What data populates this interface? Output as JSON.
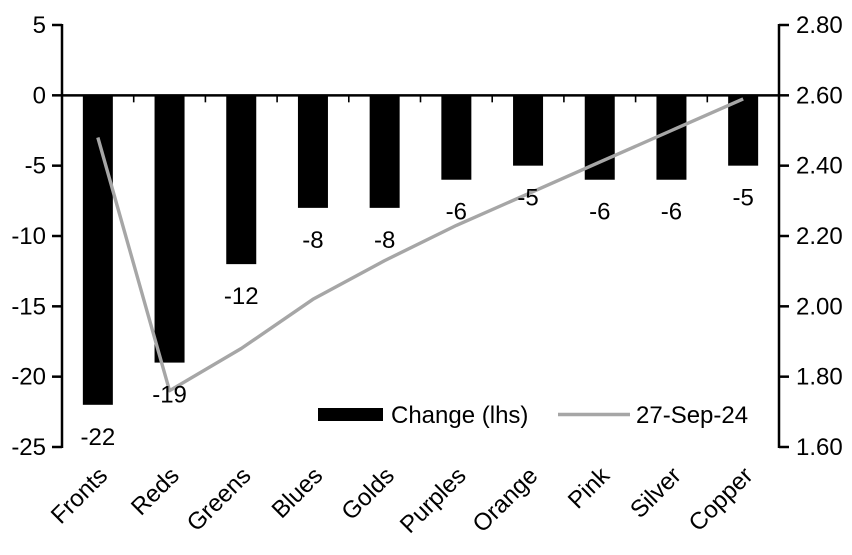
{
  "chart_data": {
    "type": "combo-bar-line",
    "title": "",
    "categories": [
      "Fronts",
      "Reds",
      "Greens",
      "Blues",
      "Golds",
      "Purples",
      "Orange",
      "Pink",
      "Silver",
      "Copper"
    ],
    "series": [
      {
        "name": "Change (lhs)",
        "type": "bar",
        "axis": "left",
        "color": "#000000",
        "values": [
          -22,
          -19,
          -12,
          -8,
          -8,
          -6,
          -5,
          -6,
          -6,
          -5
        ],
        "data_labels": [
          "-22",
          "-19",
          "-12",
          "-8",
          "-8",
          "-6",
          "-5",
          "-6",
          "-6",
          "-5"
        ]
      },
      {
        "name": "27-Sep-24",
        "type": "line",
        "axis": "right",
        "color": "#A6A6A6",
        "values": [
          2.48,
          1.76,
          1.88,
          2.02,
          2.13,
          2.23,
          2.32,
          2.41,
          2.5,
          2.59
        ]
      }
    ],
    "left_axis": {
      "min": -25,
      "max": 5,
      "tick_step": 5,
      "tick_labels": [
        "5",
        "0",
        "-5",
        "-10",
        "-15",
        "-20",
        "-25"
      ]
    },
    "right_axis": {
      "min": 1.6,
      "max": 2.8,
      "tick_step": 0.2,
      "tick_labels": [
        "2.80",
        "2.60",
        "2.40",
        "2.20",
        "2.00",
        "1.80",
        "1.60"
      ]
    },
    "legend": {
      "position": "bottom-inside",
      "entries": [
        "Change (lhs)",
        "27-Sep-24"
      ]
    },
    "grid": false,
    "colors": {
      "bar": "#000000",
      "line": "#A6A6A6",
      "axis": "#000000",
      "text": "#000000",
      "background": "#FFFFFF"
    }
  }
}
